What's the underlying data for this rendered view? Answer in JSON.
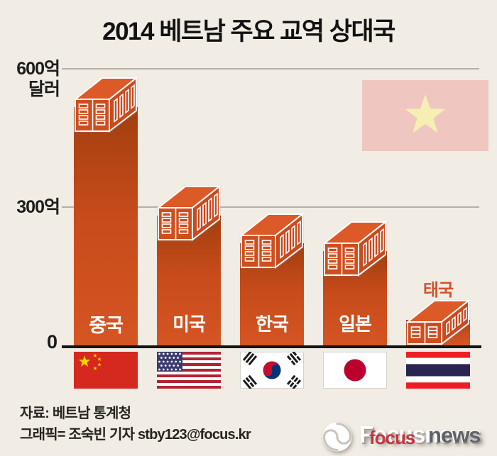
{
  "title": "2014 베트남 주요 교역 상대국",
  "axis": {
    "y600_label": "600억",
    "y600_unit": "달러",
    "y300_label": "300억",
    "zero_label": "0"
  },
  "chart_data": {
    "type": "bar",
    "title": "2014 베트남 주요 교역 상대국",
    "unit": "억 달러",
    "categories": [
      "중국",
      "미국",
      "한국",
      "일본",
      "태국"
    ],
    "category_keys": [
      "china",
      "usa",
      "korea",
      "japan",
      "thailand"
    ],
    "values": [
      585,
      350,
      290,
      272,
      102
    ],
    "ylim": [
      0,
      600
    ],
    "yticks": [
      0,
      300,
      600
    ],
    "bar_style": "shipping-container",
    "legend": "none",
    "grid": "horizontal"
  },
  "colors": {
    "background": "#f1ede5",
    "bar_gradient_top": "#a23e0e",
    "bar_gradient_bottom": "#d55523",
    "container_front": "#cf4e20",
    "container_top": "#dc5a28",
    "container_side": "#c94a1e",
    "container_outline": "#ffffff",
    "gridline": "#b6b0a7",
    "axis_line": "#161616",
    "thailand_label": "#d4512a",
    "vietnam_flag_bg": "#efc6c0",
    "vietnam_flag_star": "#f6efb4"
  },
  "flag_colors": {
    "china_bg": "#d5281e",
    "china_star": "#fcd500",
    "usa_red": "#b22234",
    "usa_blue": "#3c3b6e",
    "korea_red": "#c60c30",
    "korea_blue": "#003478",
    "korea_black": "#1a1a1a",
    "japan_disc": "#bc002d",
    "thai_red": "#ec2024",
    "thai_navy": "#2a2550"
  },
  "footer": {
    "source": "자료: 베트남 통계청",
    "credit": "그래픽= 조숙빈 기자 stby123@focus.kr"
  },
  "logo": {
    "brand": "Focusnews",
    "overlay_word": "focus",
    "tail_word": "news"
  }
}
